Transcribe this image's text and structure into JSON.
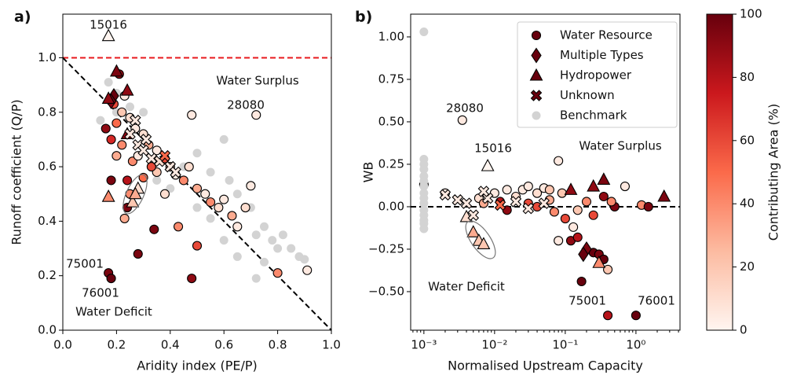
{
  "chart_data": [
    {
      "type": "scatter",
      "panel_label": "a)",
      "xlabel": "Aridity index (PE/P)",
      "ylabel": "Runoff coefficient (Q/P)",
      "xlim": [
        0,
        1
      ],
      "ylim": [
        0,
        1.16
      ],
      "xticks": [
        {
          "value": 0,
          "label": "0.0"
        },
        {
          "value": 0.2,
          "label": "0.2"
        },
        {
          "value": 0.4,
          "label": "0.4"
        },
        {
          "value": 0.6,
          "label": "0.6"
        },
        {
          "value": 0.8,
          "label": "0.8"
        },
        {
          "value": 1,
          "label": "1.0"
        }
      ],
      "yticks": [
        {
          "value": 0,
          "label": "0.0"
        },
        {
          "value": 0.2,
          "label": "0.2"
        },
        {
          "value": 0.4,
          "label": "0.4"
        },
        {
          "value": 0.6,
          "label": "0.6"
        },
        {
          "value": 0.8,
          "label": "0.8"
        },
        {
          "value": 1,
          "label": "1.0"
        }
      ],
      "annotations": [
        "15016",
        "28080",
        "75001",
        "76001",
        "Water Surplus",
        "Water Deficit"
      ],
      "series": [
        {
          "marker": "benchmark",
          "color": "#d3d3d3",
          "x": [
            0.17,
            0.14,
            0.2,
            0.3,
            0.45,
            0.5,
            0.55,
            0.6,
            0.62,
            0.65,
            0.7,
            0.72,
            0.75,
            0.78,
            0.8,
            0.82,
            0.85,
            0.88,
            0.9,
            0.75,
            0.72,
            0.65,
            0.6,
            0.55,
            0.5,
            0.4,
            0.35,
            0.25,
            0.2
          ],
          "values": [
            0.91,
            0.77,
            0.8,
            0.8,
            0.6,
            0.65,
            0.58,
            0.7,
            0.55,
            0.5,
            0.45,
            0.35,
            0.38,
            0.33,
            0.3,
            0.35,
            0.3,
            0.27,
            0.26,
            0.25,
            0.19,
            0.27,
            0.33,
            0.41,
            0.45,
            0.52,
            0.55,
            0.82,
            0.87
          ]
        },
        {
          "marker": "circle",
          "x": [
            0.17,
            0.18,
            0.28,
            0.34,
            0.48,
            0.18,
            0.24,
            0.21,
            0.16,
            0.18,
            0.2,
            0.22,
            0.25,
            0.27,
            0.3,
            0.32,
            0.35,
            0.38,
            0.4,
            0.42,
            0.45,
            0.47,
            0.5,
            0.53,
            0.55,
            0.58,
            0.6,
            0.63,
            0.65,
            0.68,
            0.7,
            0.72,
            0.48,
            0.8,
            0.91,
            0.43,
            0.5,
            0.23,
            0.24,
            0.26,
            0.3,
            0.35,
            0.38,
            0.33,
            0.28,
            0.2,
            0.23,
            0.19,
            0.22,
            0.25
          ],
          "values": [
            0.21,
            0.19,
            0.28,
            0.37,
            0.19,
            0.55,
            0.45,
            0.94,
            0.74,
            0.7,
            0.76,
            0.8,
            0.78,
            0.74,
            0.72,
            0.68,
            0.66,
            0.63,
            0.6,
            0.57,
            0.55,
            0.6,
            0.52,
            0.5,
            0.47,
            0.45,
            0.48,
            0.42,
            0.38,
            0.45,
            0.53,
            0.79,
            0.79,
            0.21,
            0.22,
            0.38,
            0.31,
            0.41,
            0.55,
            0.62,
            0.56,
            0.58,
            0.5,
            0.6,
            0.64,
            0.64,
            0.86,
            0.83,
            0.68,
            0.5
          ],
          "contributing_area": [
            95,
            100,
            95,
            95,
            90,
            95,
            95,
            90,
            90,
            70,
            50,
            20,
            10,
            5,
            10,
            30,
            5,
            60,
            20,
            5,
            40,
            10,
            30,
            5,
            40,
            10,
            5,
            30,
            5,
            10,
            5,
            5,
            5,
            40,
            5,
            40,
            60,
            30,
            80,
            40,
            50,
            20,
            10,
            60,
            5,
            30,
            5,
            60,
            40,
            40
          ]
        },
        {
          "marker": "diamond",
          "x": [
            0.19,
            0.18
          ],
          "values": [
            0.86,
            0.84
          ],
          "contributing_area": [
            100,
            95
          ]
        },
        {
          "marker": "triangle",
          "x": [
            0.17,
            0.2,
            0.24,
            0.17,
            0.24,
            0.17,
            0.26,
            0.28,
            0.27
          ],
          "values": [
            1.08,
            0.95,
            0.88,
            0.85,
            0.72,
            0.49,
            0.47,
            0.52,
            0.5
          ],
          "contributing_area": [
            0,
            95,
            90,
            90,
            90,
            40,
            20,
            10,
            30
          ]
        },
        {
          "marker": "x",
          "x": [
            0.25,
            0.28,
            0.3,
            0.33,
            0.36,
            0.38,
            0.4,
            0.42,
            0.31,
            0.27
          ],
          "values": [
            0.72,
            0.68,
            0.66,
            0.63,
            0.62,
            0.64,
            0.6,
            0.58,
            0.7,
            0.77
          ],
          "contributing_area": [
            5,
            5,
            5,
            5,
            10,
            50,
            5,
            5,
            5,
            5
          ]
        }
      ]
    },
    {
      "type": "scatter",
      "panel_label": "b)",
      "xlabel": "Normalised Upstream Capacity",
      "ylabel": "WB",
      "xscale": "log",
      "legend": "upper right",
      "xlim": [
        0.00065,
        4.2
      ],
      "ylim": [
        -0.727,
        1.134
      ],
      "xticks": [
        {
          "value": 0.001,
          "label": "10⁻³"
        },
        {
          "value": 0.01,
          "label": "10⁻²"
        },
        {
          "value": 0.1,
          "label": "10⁻¹"
        },
        {
          "value": 1,
          "label": "10⁰"
        }
      ],
      "yticks": [
        {
          "value": -0.5,
          "label": "−0.50"
        },
        {
          "value": -0.25,
          "label": "−0.25"
        },
        {
          "value": 0,
          "label": "0.00"
        },
        {
          "value": 0.25,
          "label": "0.25"
        },
        {
          "value": 0.5,
          "label": "0.50"
        },
        {
          "value": 0.75,
          "label": "0.75"
        },
        {
          "value": 1,
          "label": "1.00"
        }
      ],
      "annotations": [
        "28080",
        "15016",
        "Water Surplus",
        "Water Deficit",
        "75001",
        "76001"
      ],
      "series": [
        {
          "name": "Water Resource",
          "marker": "circle",
          "x": [
            0.0035,
            0.001,
            0.002,
            0.006,
            0.01,
            0.012,
            0.015,
            0.02,
            0.025,
            0.03,
            0.04,
            0.05,
            0.06,
            0.07,
            0.08,
            0.09,
            0.1,
            0.12,
            0.13,
            0.15,
            0.17,
            0.2,
            0.25,
            0.3,
            0.35,
            0.4,
            0.4,
            0.5,
            0.7,
            1.0,
            1.2,
            1.5,
            0.35,
            0.45,
            0.25,
            0.03,
            0.015,
            0.007,
            0.04,
            0.06,
            0.08,
            0.15
          ],
          "values": [
            0.51,
            0.13,
            0.08,
            0.05,
            0.08,
            0.03,
            -0.02,
            0.06,
            0.1,
            0.02,
            0.08,
            0.11,
            0.04,
            -0.03,
            0.27,
            0.08,
            -0.07,
            -0.2,
            -0.12,
            -0.18,
            -0.44,
            0.03,
            -0.27,
            -0.28,
            -0.31,
            -0.64,
            -0.37,
            0.0,
            0.12,
            -0.64,
            0.01,
            0.0,
            0.06,
            0.03,
            -0.05,
            0.12,
            0.1,
            0.02,
            0.0,
            0.1,
            -0.2,
            -0.02
          ],
          "contributing_area": [
            5,
            5,
            5,
            10,
            5,
            80,
            90,
            10,
            5,
            60,
            10,
            5,
            30,
            40,
            5,
            20,
            60,
            90,
            5,
            80,
            100,
            40,
            100,
            95,
            100,
            80,
            20,
            95,
            5,
            100,
            40,
            95,
            90,
            40,
            60,
            5,
            5,
            30,
            60,
            20,
            5,
            20
          ]
        },
        {
          "name": "Multiple Types",
          "marker": "diamond",
          "x": [
            0.2,
            0.18
          ],
          "values": [
            -0.25,
            -0.28
          ],
          "contributing_area": [
            95,
            100
          ]
        },
        {
          "name": "Hydropower",
          "marker": "triangle",
          "x": [
            0.008,
            2.5,
            0.35,
            0.25,
            0.12,
            0.3,
            0.005,
            0.006,
            0.007,
            0.004
          ],
          "values": [
            0.24,
            0.06,
            0.16,
            0.12,
            0.1,
            -0.33,
            -0.15,
            -0.2,
            -0.22,
            -0.06
          ],
          "contributing_area": [
            0,
            95,
            95,
            90,
            90,
            40,
            30,
            20,
            20,
            10
          ]
        },
        {
          "name": "Unknown",
          "marker": "x",
          "x": [
            0.002,
            0.003,
            0.004,
            0.005,
            0.012,
            0.008,
            0.02,
            0.03,
            0.05,
            0.007
          ],
          "values": [
            0.07,
            0.04,
            0.02,
            -0.05,
            0.01,
            0.05,
            0.03,
            -0.01,
            0.02,
            0.09
          ],
          "contributing_area": [
            5,
            5,
            5,
            5,
            50,
            5,
            5,
            5,
            5,
            5
          ]
        },
        {
          "name": "Benchmark",
          "marker": "benchmark",
          "color": "#d3d3d3",
          "x": [
            0.001,
            0.001,
            0.001,
            0.001,
            0.001,
            0.001,
            0.001,
            0.001,
            0.001,
            0.001,
            0.001,
            0.001,
            0.001,
            0.001,
            0.001
          ],
          "values": [
            1.03,
            0.28,
            0.25,
            0.22,
            0.18,
            0.15,
            0.12,
            0.08,
            0.05,
            0.02,
            -0.02,
            -0.05,
            -0.08,
            -0.1,
            -0.13
          ]
        }
      ]
    },
    {
      "type": "colorbar",
      "label": "Contributing Area (%)",
      "lim": [
        0,
        100
      ],
      "ticks": [
        0,
        20,
        40,
        60,
        80,
        100
      ],
      "colors": [
        "#fff5f0",
        "#fcbba1",
        "#fb6a4a",
        "#cb181d",
        "#67000d"
      ]
    }
  ]
}
